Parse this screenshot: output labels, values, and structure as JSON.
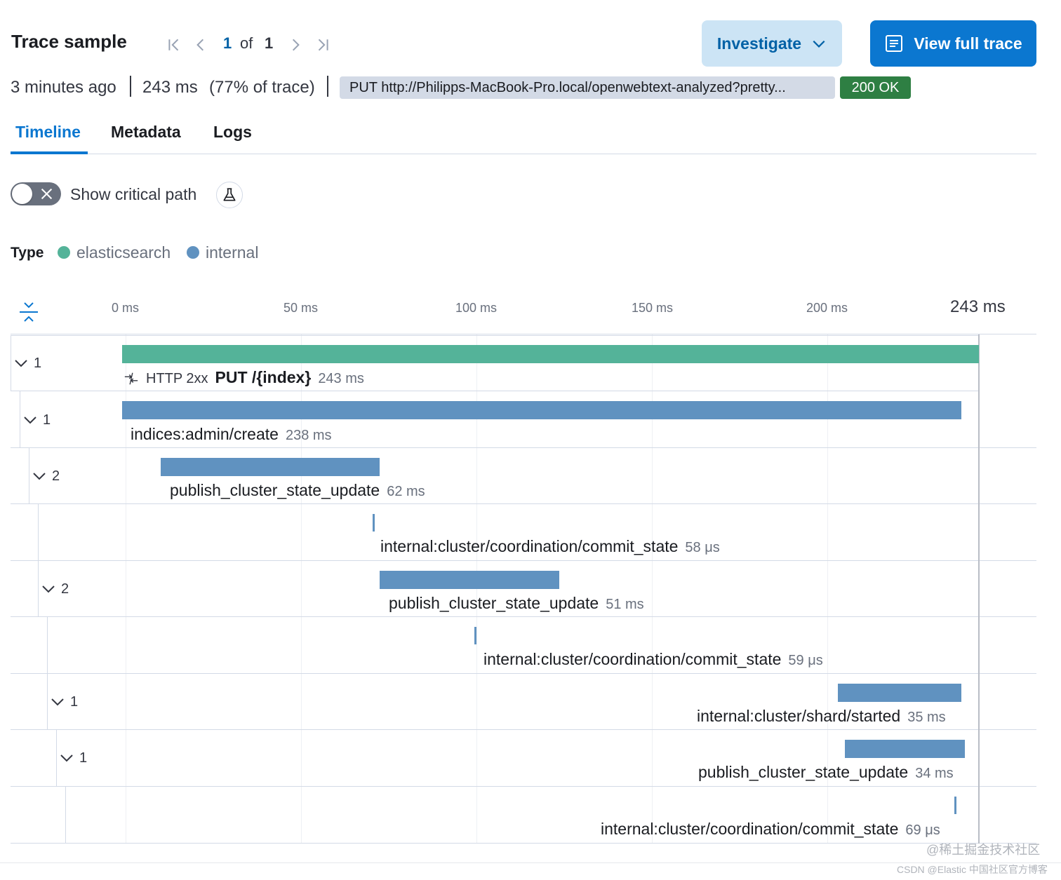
{
  "header": {
    "title": "Trace sample",
    "pagination": {
      "current": "1",
      "of": "of",
      "total": "1"
    },
    "investigate_label": "Investigate",
    "view_full_trace_label": "View full trace"
  },
  "summary": {
    "time_ago": "3 minutes ago",
    "duration": "243 ms",
    "percent_of_trace": "(77% of trace)",
    "url": "PUT http://Philipps-MacBook-Pro.local/openwebtext-analyzed?pretty...",
    "status": "200 OK",
    "status_color": "#2e7f43"
  },
  "tabs": [
    {
      "label": "Timeline",
      "active": true
    },
    {
      "label": "Metadata",
      "active": false
    },
    {
      "label": "Logs",
      "active": false
    }
  ],
  "critical_path": {
    "label": "Show critical path",
    "enabled": false
  },
  "legend": {
    "title": "Type",
    "items": [
      {
        "label": "elasticsearch",
        "color": "#54b399"
      },
      {
        "label": "internal",
        "color": "#6092c0"
      }
    ]
  },
  "axis": {
    "ticks": [
      "0 ms",
      "50 ms",
      "100 ms",
      "150 ms",
      "200 ms"
    ],
    "max_label": "243 ms",
    "max_ms": 243
  },
  "spans": [
    {
      "count": "1",
      "http": "HTTP 2xx",
      "name": "PUT /{index}",
      "duration": "243 ms",
      "start_ms": 0,
      "dur_ms": 243,
      "type": "elasticsearch",
      "color": "#54b399"
    },
    {
      "count": "1",
      "name": "indices:admin/create",
      "duration": "238 ms",
      "start_ms": 0,
      "dur_ms": 238,
      "type": "internal",
      "color": "#6092c0"
    },
    {
      "count": "2",
      "name": "publish_cluster_state_update",
      "duration": "62 ms",
      "start_ms": 11,
      "dur_ms": 62,
      "type": "internal",
      "color": "#6092c0"
    },
    {
      "count": "",
      "name": "internal:cluster/coordination/commit_state",
      "duration": "58 μs",
      "start_ms": 71,
      "dur_ms": 0.058,
      "type": "internal",
      "color": "#6092c0"
    },
    {
      "count": "2",
      "name": "publish_cluster_state_update",
      "duration": "51 ms",
      "start_ms": 73,
      "dur_ms": 51,
      "type": "internal",
      "color": "#6092c0"
    },
    {
      "count": "",
      "name": "internal:cluster/coordination/commit_state",
      "duration": "59 μs",
      "start_ms": 100,
      "dur_ms": 0.059,
      "type": "internal",
      "color": "#6092c0"
    },
    {
      "count": "1",
      "name": "internal:cluster/shard/started",
      "duration": "35 ms",
      "start_ms": 203,
      "dur_ms": 35,
      "type": "internal",
      "color": "#6092c0"
    },
    {
      "count": "1",
      "name": "publish_cluster_state_update",
      "duration": "34 ms",
      "start_ms": 205,
      "dur_ms": 34,
      "type": "internal",
      "color": "#6092c0"
    },
    {
      "count": "",
      "name": "internal:cluster/coordination/commit_state",
      "duration": "69 μs",
      "start_ms": 236,
      "dur_ms": 0.069,
      "type": "internal",
      "color": "#6092c0"
    }
  ],
  "watermark": {
    "line1": "@稀土掘金技术社区",
    "line2": "CSDN @Elastic 中国社区官方博客"
  }
}
